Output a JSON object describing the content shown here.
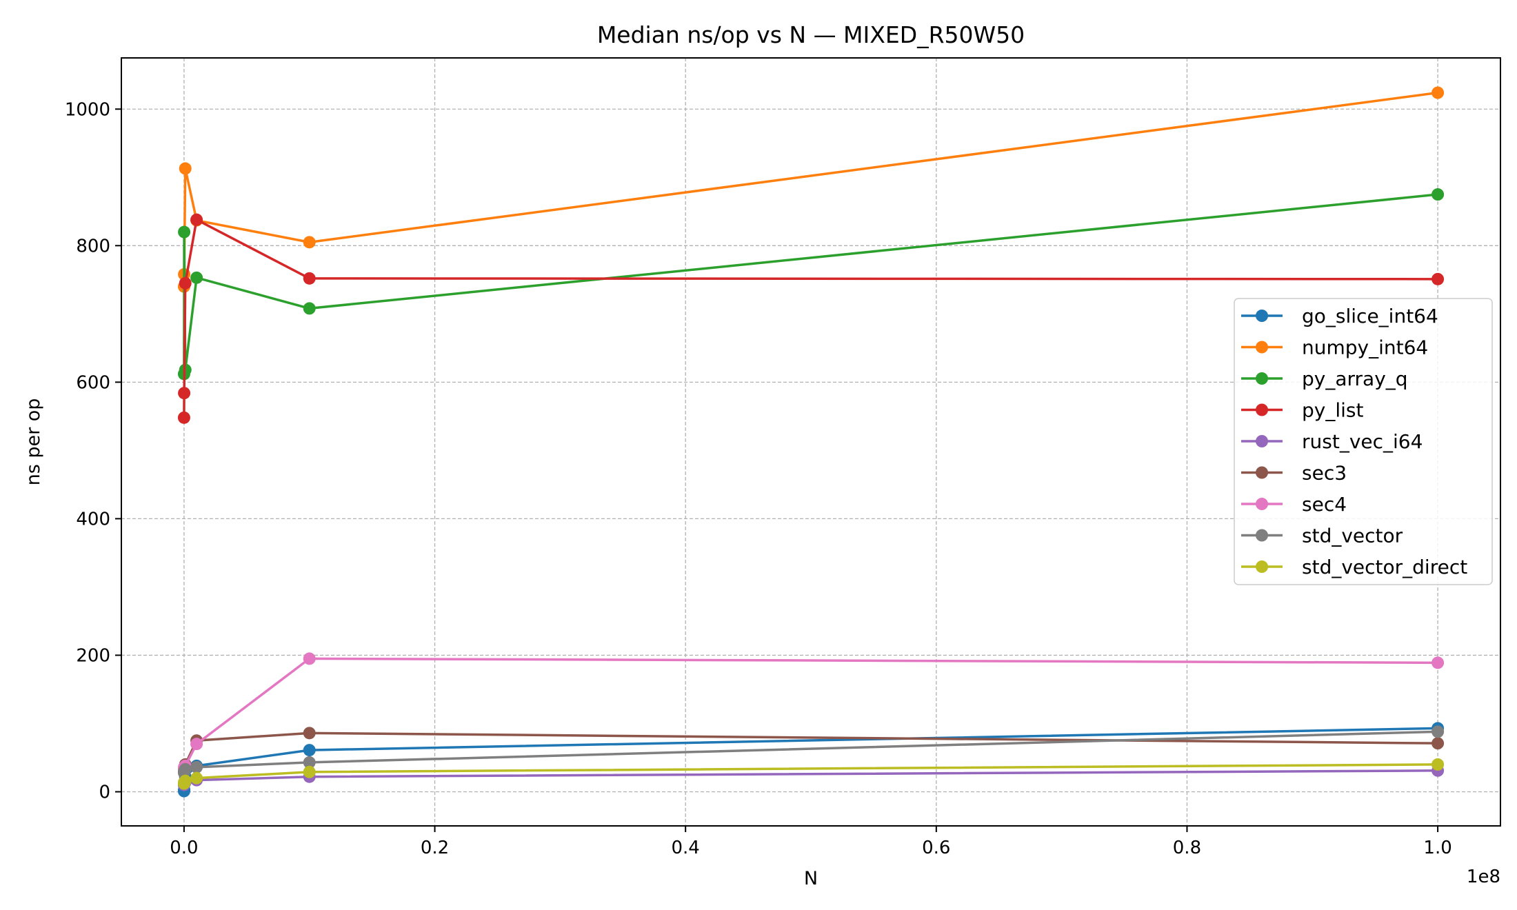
{
  "chart_data": {
    "type": "line",
    "title": "Median ns/op vs N — MIXED_R50W50",
    "xlabel": "N",
    "ylabel": "ns per op",
    "x_offset_label": "1e8",
    "xlim": [
      -5000000,
      105000000
    ],
    "ylim": [
      -50,
      1075
    ],
    "xticks": [
      0,
      20000000,
      40000000,
      60000000,
      80000000,
      100000000
    ],
    "xtick_labels": [
      "0.0",
      "0.2",
      "0.4",
      "0.6",
      "0.8",
      "1.0"
    ],
    "yticks": [
      0,
      200,
      400,
      600,
      800,
      1000
    ],
    "ytick_labels": [
      "0",
      "200",
      "400",
      "600",
      "800",
      "1000"
    ],
    "grid": true,
    "legend_position": "center-right",
    "x": [
      1000,
      10000,
      100000,
      1000000,
      10000000,
      100000000
    ],
    "series": [
      {
        "name": "go_slice_int64",
        "color": "#1f77b4",
        "values": [
          1,
          3,
          22,
          38,
          61,
          93
        ]
      },
      {
        "name": "numpy_int64",
        "color": "#ff7f0e",
        "values": [
          740,
          758,
          913,
          837,
          805,
          1024
        ]
      },
      {
        "name": "py_array_q",
        "color": "#2ca02c",
        "values": [
          612,
          820,
          618,
          753,
          708,
          875
        ]
      },
      {
        "name": "py_list",
        "color": "#d62728",
        "values": [
          548,
          584,
          745,
          838,
          752,
          751
        ]
      },
      {
        "name": "rust_vec_i64",
        "color": "#9467bd",
        "values": [
          10,
          12,
          14,
          17,
          22,
          31
        ]
      },
      {
        "name": "sec3",
        "color": "#8c564b",
        "values": [
          30,
          34,
          40,
          75,
          86,
          71
        ]
      },
      {
        "name": "sec4",
        "color": "#e377c2",
        "values": [
          33,
          36,
          38,
          70,
          195,
          189
        ]
      },
      {
        "name": "std_vector",
        "color": "#7f7f7f",
        "values": [
          28,
          30,
          33,
          36,
          43,
          88
        ]
      },
      {
        "name": "std_vector_direct",
        "color": "#bcbd22",
        "values": [
          12,
          14,
          16,
          20,
          29,
          40
        ]
      }
    ]
  }
}
